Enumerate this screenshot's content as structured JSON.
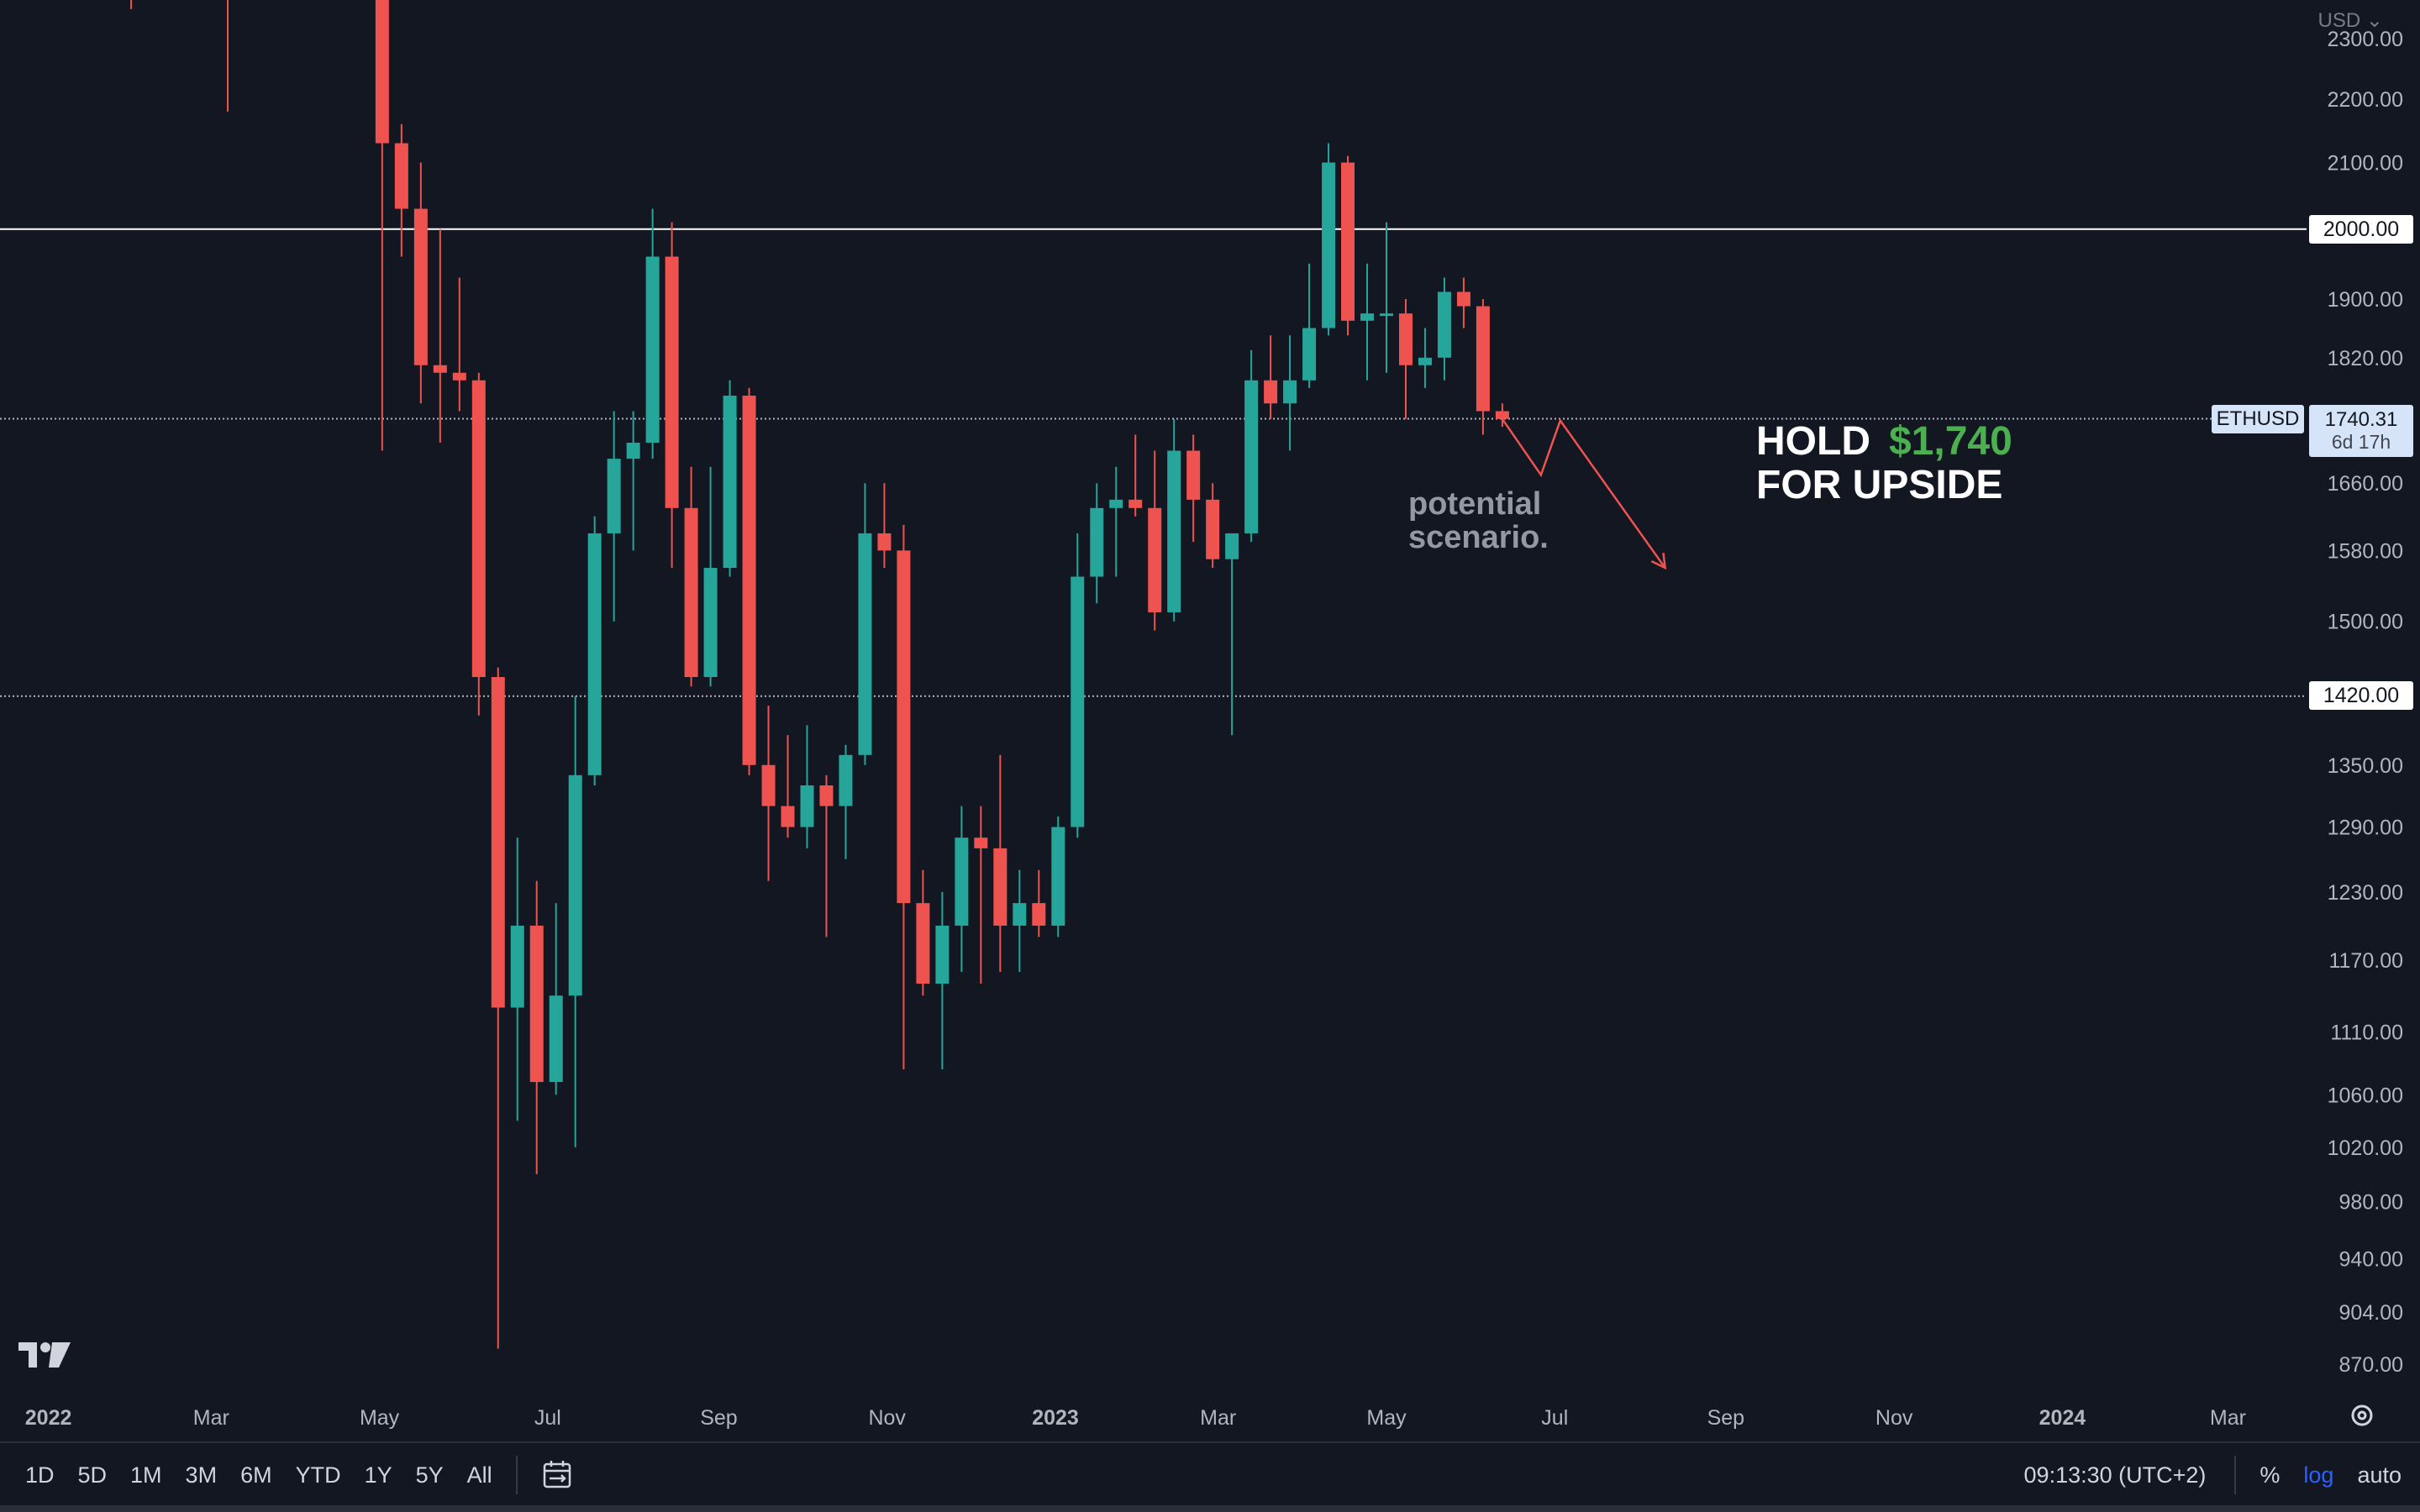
{
  "currency": "USD",
  "toolbar": {
    "ranges": [
      "1D",
      "5D",
      "1M",
      "3M",
      "6M",
      "YTD",
      "1Y",
      "5Y",
      "All"
    ],
    "time": "09:13:30 (UTC+2)",
    "percent": "%",
    "log": "log",
    "auto": "auto",
    "date_range_icon": "calendar-range-icon"
  },
  "annotations": {
    "hold_word": "HOLD",
    "hold_price": "$1,740",
    "for_upside": "FOR UPSIDE",
    "potential_line1": "potential",
    "potential_line2": "scenario."
  },
  "ticker": "ETHUSD",
  "last_price": "1740.31",
  "countdown": "6d 17h",
  "levels": [
    "2000.00",
    "1420.00"
  ],
  "colors": {
    "up": "#26a69a",
    "down": "#ef5350",
    "background": "#131722",
    "hold_price": "#4caf50"
  },
  "chart_data": {
    "type": "candlestick",
    "symbol": "ETHUSD",
    "scale": "log",
    "y_ticks": [
      2300,
      2200,
      2100,
      1900,
      1820,
      1660,
      1580,
      1500,
      1350,
      1290,
      1230,
      1170,
      1110,
      1060,
      1020,
      980,
      940,
      904,
      870
    ],
    "x_ticks": [
      {
        "label": "2022",
        "date": "2022-01-01",
        "bold": true
      },
      {
        "label": "Mar",
        "date": "2022-03-01"
      },
      {
        "label": "May",
        "date": "2022-05-01"
      },
      {
        "label": "Jul",
        "date": "2022-07-01"
      },
      {
        "label": "Sep",
        "date": "2022-09-01"
      },
      {
        "label": "Nov",
        "date": "2022-11-01"
      },
      {
        "label": "2023",
        "date": "2023-01-01",
        "bold": true
      },
      {
        "label": "Mar",
        "date": "2023-03-01"
      },
      {
        "label": "May",
        "date": "2023-05-01"
      },
      {
        "label": "Jul",
        "date": "2023-07-01"
      },
      {
        "label": "Sep",
        "date": "2023-09-01"
      },
      {
        "label": "Nov",
        "date": "2023-11-01"
      },
      {
        "label": "2024",
        "date": "2024-01-01",
        "bold": true
      },
      {
        "label": "Mar",
        "date": "2024-03-01"
      }
    ],
    "horizontal_levels": [
      {
        "price": 2000,
        "style": "solid"
      },
      {
        "price": 1740.31,
        "style": "dotted"
      },
      {
        "price": 1420,
        "style": "dotted"
      }
    ],
    "candles": [
      {
        "date": "2022-01-31",
        "open": 2500,
        "high": 2560,
        "low": 2350,
        "close": 2380
      },
      {
        "date": "2022-03-07",
        "open": 2560,
        "high": 2620,
        "low": 2180,
        "close": 2520
      },
      {
        "date": "2022-05-02",
        "open": 2850,
        "high": 2980,
        "low": 1700,
        "close": 2130
      },
      {
        "date": "2022-05-09",
        "open": 2130,
        "high": 2160,
        "low": 1960,
        "close": 2030
      },
      {
        "date": "2022-05-16",
        "open": 2030,
        "high": 2100,
        "low": 1760,
        "close": 1810
      },
      {
        "date": "2022-05-23",
        "open": 1810,
        "high": 2000,
        "low": 1710,
        "close": 1800
      },
      {
        "date": "2022-05-30",
        "open": 1800,
        "high": 1930,
        "low": 1750,
        "close": 1790
      },
      {
        "date": "2022-06-06",
        "open": 1790,
        "high": 1800,
        "low": 1400,
        "close": 1440
      },
      {
        "date": "2022-06-13",
        "open": 1440,
        "high": 1450,
        "low": 880,
        "close": 1130
      },
      {
        "date": "2022-06-20",
        "open": 1130,
        "high": 1280,
        "low": 1040,
        "close": 1200
      },
      {
        "date": "2022-06-27",
        "open": 1200,
        "high": 1240,
        "low": 1000,
        "close": 1070
      },
      {
        "date": "2022-07-04",
        "open": 1070,
        "high": 1220,
        "low": 1060,
        "close": 1140
      },
      {
        "date": "2022-07-11",
        "open": 1140,
        "high": 1420,
        "low": 1020,
        "close": 1340
      },
      {
        "date": "2022-07-18",
        "open": 1340,
        "high": 1620,
        "low": 1330,
        "close": 1600
      },
      {
        "date": "2022-07-25",
        "open": 1600,
        "high": 1750,
        "low": 1500,
        "close": 1690
      },
      {
        "date": "2022-08-01",
        "open": 1690,
        "high": 1750,
        "low": 1580,
        "close": 1710
      },
      {
        "date": "2022-08-08",
        "open": 1710,
        "high": 2030,
        "low": 1690,
        "close": 1960
      },
      {
        "date": "2022-08-15",
        "open": 1960,
        "high": 2010,
        "low": 1560,
        "close": 1630
      },
      {
        "date": "2022-08-22",
        "open": 1630,
        "high": 1680,
        "low": 1430,
        "close": 1440
      },
      {
        "date": "2022-08-29",
        "open": 1440,
        "high": 1680,
        "low": 1430,
        "close": 1560
      },
      {
        "date": "2022-09-05",
        "open": 1560,
        "high": 1790,
        "low": 1550,
        "close": 1770
      },
      {
        "date": "2022-09-12",
        "open": 1770,
        "high": 1780,
        "low": 1340,
        "close": 1350
      },
      {
        "date": "2022-09-19",
        "open": 1350,
        "high": 1410,
        "low": 1240,
        "close": 1310
      },
      {
        "date": "2022-09-26",
        "open": 1310,
        "high": 1380,
        "low": 1280,
        "close": 1290
      },
      {
        "date": "2022-10-03",
        "open": 1290,
        "high": 1390,
        "low": 1270,
        "close": 1330
      },
      {
        "date": "2022-10-10",
        "open": 1330,
        "high": 1340,
        "low": 1190,
        "close": 1310
      },
      {
        "date": "2022-10-17",
        "open": 1310,
        "high": 1370,
        "low": 1260,
        "close": 1360
      },
      {
        "date": "2022-10-24",
        "open": 1360,
        "high": 1660,
        "low": 1350,
        "close": 1600
      },
      {
        "date": "2022-10-31",
        "open": 1600,
        "high": 1660,
        "low": 1560,
        "close": 1580
      },
      {
        "date": "2022-11-07",
        "open": 1580,
        "high": 1610,
        "low": 1080,
        "close": 1220
      },
      {
        "date": "2022-11-14",
        "open": 1220,
        "high": 1250,
        "low": 1140,
        "close": 1150
      },
      {
        "date": "2022-11-21",
        "open": 1150,
        "high": 1230,
        "low": 1080,
        "close": 1200
      },
      {
        "date": "2022-11-28",
        "open": 1200,
        "high": 1310,
        "low": 1160,
        "close": 1280
      },
      {
        "date": "2022-12-05",
        "open": 1280,
        "high": 1310,
        "low": 1150,
        "close": 1270
      },
      {
        "date": "2022-12-12",
        "open": 1270,
        "high": 1360,
        "low": 1160,
        "close": 1200
      },
      {
        "date": "2022-12-19",
        "open": 1200,
        "high": 1250,
        "low": 1160,
        "close": 1220
      },
      {
        "date": "2022-12-26",
        "open": 1220,
        "high": 1250,
        "low": 1190,
        "close": 1200
      },
      {
        "date": "2023-01-02",
        "open": 1200,
        "high": 1300,
        "low": 1190,
        "close": 1290
      },
      {
        "date": "2023-01-09",
        "open": 1290,
        "high": 1600,
        "low": 1280,
        "close": 1550
      },
      {
        "date": "2023-01-16",
        "open": 1550,
        "high": 1660,
        "low": 1520,
        "close": 1630
      },
      {
        "date": "2023-01-23",
        "open": 1630,
        "high": 1680,
        "low": 1550,
        "close": 1640
      },
      {
        "date": "2023-01-30",
        "open": 1640,
        "high": 1720,
        "low": 1620,
        "close": 1630
      },
      {
        "date": "2023-02-06",
        "open": 1630,
        "high": 1700,
        "low": 1490,
        "close": 1510
      },
      {
        "date": "2023-02-13",
        "open": 1510,
        "high": 1740,
        "low": 1500,
        "close": 1700
      },
      {
        "date": "2023-02-20",
        "open": 1700,
        "high": 1720,
        "low": 1590,
        "close": 1640
      },
      {
        "date": "2023-02-27",
        "open": 1640,
        "high": 1660,
        "low": 1560,
        "close": 1570
      },
      {
        "date": "2023-03-06",
        "open": 1570,
        "high": 1580,
        "low": 1380,
        "close": 1600
      },
      {
        "date": "2023-03-13",
        "open": 1600,
        "high": 1830,
        "low": 1590,
        "close": 1790
      },
      {
        "date": "2023-03-20",
        "open": 1790,
        "high": 1850,
        "low": 1740,
        "close": 1760
      },
      {
        "date": "2023-03-27",
        "open": 1760,
        "high": 1850,
        "low": 1700,
        "close": 1790
      },
      {
        "date": "2023-04-03",
        "open": 1790,
        "high": 1950,
        "low": 1780,
        "close": 1860
      },
      {
        "date": "2023-04-10",
        "open": 1860,
        "high": 2130,
        "low": 1850,
        "close": 2100
      },
      {
        "date": "2023-04-17",
        "open": 2100,
        "high": 2110,
        "low": 1850,
        "close": 1870
      },
      {
        "date": "2023-04-24",
        "open": 1870,
        "high": 1950,
        "low": 1790,
        "close": 1880
      },
      {
        "date": "2023-05-01",
        "open": 1880,
        "high": 2010,
        "low": 1800,
        "close": 1880
      },
      {
        "date": "2023-05-08",
        "open": 1880,
        "high": 1900,
        "low": 1740,
        "close": 1810
      },
      {
        "date": "2023-05-15",
        "open": 1810,
        "high": 1860,
        "low": 1780,
        "close": 1820
      },
      {
        "date": "2023-05-22",
        "open": 1820,
        "high": 1930,
        "low": 1790,
        "close": 1910
      },
      {
        "date": "2023-05-29",
        "open": 1910,
        "high": 1930,
        "low": 1860,
        "close": 1890
      },
      {
        "date": "2023-06-05",
        "open": 1890,
        "high": 1900,
        "low": 1720,
        "close": 1750
      },
      {
        "date": "2023-06-12",
        "open": 1750,
        "high": 1760,
        "low": 1730,
        "close": 1740
      }
    ],
    "scenario_path": [
      {
        "date": "2023-06-12",
        "price": 1740
      },
      {
        "date": "2023-06-26",
        "price": 1670
      },
      {
        "date": "2023-07-03",
        "price": 1738
      },
      {
        "date": "2023-08-10",
        "price": 1560
      }
    ]
  }
}
